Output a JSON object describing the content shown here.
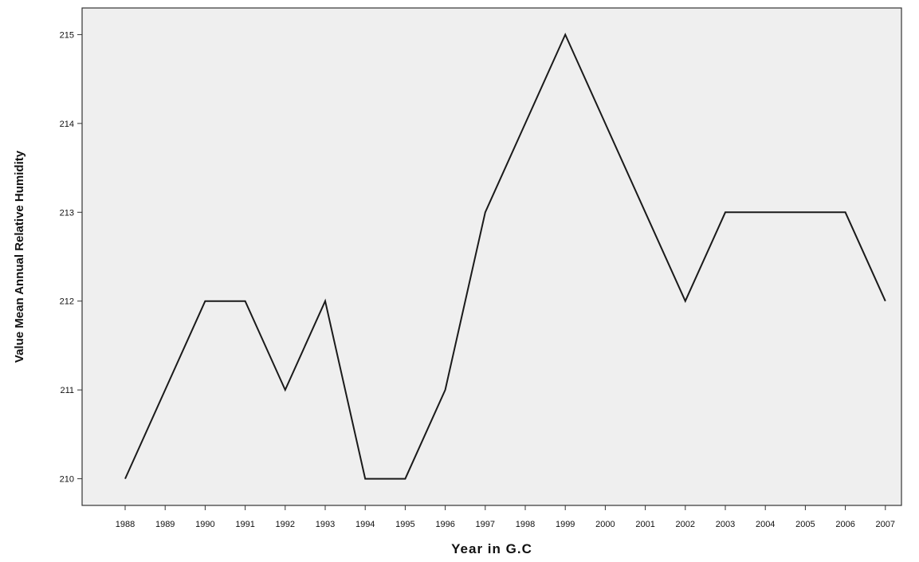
{
  "colors": {
    "plot_background": "#efefef",
    "line": "#1a1a1a",
    "axis": "#333333",
    "page_background": "#ffffff"
  },
  "chart_data": {
    "type": "line",
    "title": "",
    "xlabel": "Year in G.C",
    "ylabel": "Value Mean Annual Relative Humidity",
    "categories": [
      "1988",
      "1989",
      "1990",
      "1991",
      "1992",
      "1993",
      "1994",
      "1995",
      "1996",
      "1997",
      "1998",
      "1999",
      "2000",
      "2001",
      "2002",
      "2003",
      "2004",
      "2005",
      "2006",
      "2007"
    ],
    "series": [
      {
        "values": [
          210,
          211,
          212,
          212,
          211,
          212,
          210,
          210,
          211,
          213,
          214,
          215,
          214,
          213,
          212,
          213,
          213,
          213,
          213,
          212
        ]
      }
    ],
    "ylim": [
      209.7,
      215.3
    ],
    "yticks": [
      210,
      211,
      212,
      213,
      214,
      215
    ],
    "ytick_labels": [
      "210",
      "211",
      "212",
      "213",
      "214",
      "215"
    ],
    "grid": false,
    "legend": "none"
  }
}
